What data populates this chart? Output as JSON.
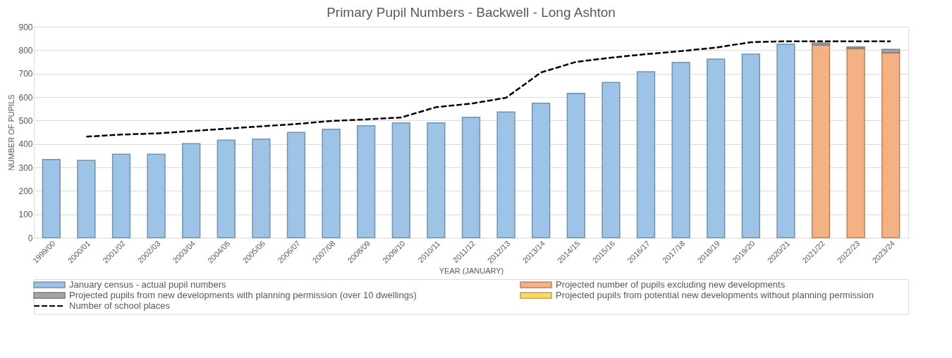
{
  "chart_data": {
    "type": "bar",
    "title": "Primary Pupil Numbers - Backwell - Long Ashton",
    "xlabel": "YEAR (JANUARY)",
    "ylabel": "NUMBER OF PUPILS",
    "categories": [
      "1999/00",
      "2000/01",
      "2001/02",
      "2002/03",
      "2003/04",
      "2004/05",
      "2005/06",
      "2006/07",
      "2007/08",
      "2008/09",
      "2009/10",
      "2010/11",
      "2011/12",
      "2012/13",
      "2013/14",
      "2014/15",
      "2015/16",
      "2016/17",
      "2017/18",
      "2018/19",
      "2019/20",
      "2020/21",
      "2021/22",
      "2022/23",
      "2023/24"
    ],
    "stacked": true,
    "ylim": [
      0,
      900
    ],
    "yticks": [
      0,
      100,
      200,
      300,
      400,
      500,
      600,
      700,
      800,
      900
    ],
    "grid": "y",
    "legend": "bottom",
    "series": [
      {
        "name": "January census - actual pupil numbers",
        "color": "#9dc3e6",
        "values": [
          334,
          330,
          356,
          356,
          401,
          416,
          421,
          449,
          463,
          478,
          490,
          490,
          514,
          536,
          574,
          616,
          662,
          708,
          748,
          762,
          783,
          826,
          null,
          null,
          null
        ]
      },
      {
        "name": "Projected number of pupils excluding new developments",
        "color": "#f4b183",
        "values": [
          null,
          null,
          null,
          null,
          null,
          null,
          null,
          null,
          null,
          null,
          null,
          null,
          null,
          null,
          null,
          null,
          null,
          null,
          null,
          null,
          null,
          null,
          822,
          806,
          789
        ]
      },
      {
        "name": "Projected pupils from new developments with planning permission (over 10 dwellings)",
        "color": "#a5a5a5",
        "values": [
          null,
          null,
          null,
          null,
          null,
          null,
          null,
          null,
          null,
          null,
          null,
          null,
          null,
          null,
          null,
          null,
          null,
          null,
          null,
          null,
          null,
          null,
          8,
          8,
          14
        ]
      },
      {
        "name": "Projected pupils from potential new developments without planning permission",
        "color": "#ffd966",
        "values": [
          null,
          null,
          null,
          null,
          null,
          null,
          null,
          null,
          null,
          null,
          null,
          null,
          null,
          null,
          null,
          null,
          null,
          null,
          null,
          null,
          null,
          null,
          null,
          null,
          null
        ]
      },
      {
        "name": "Number of school places",
        "type": "line",
        "color": "#000000",
        "line_style": "dashed",
        "values": [
          null,
          431,
          440,
          445,
          455,
          465,
          475,
          485,
          498,
          505,
          513,
          557,
          572,
          597,
          705,
          750,
          768,
          783,
          796,
          811,
          834,
          838,
          838,
          838,
          838
        ]
      }
    ]
  }
}
